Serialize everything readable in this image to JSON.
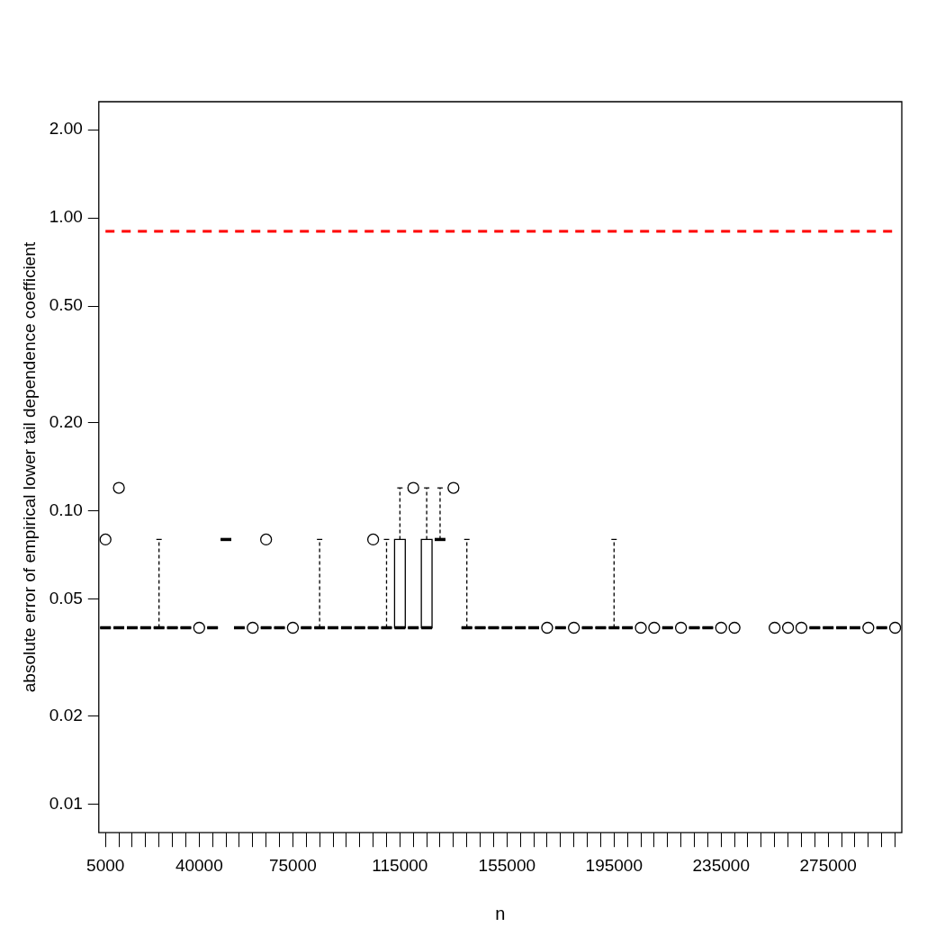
{
  "chart_data": {
    "type": "box",
    "xlabel": "n",
    "ylabel": "absolute error of empirical lower tail dependence coefficient",
    "categories": [
      "5000",
      null,
      null,
      null,
      null,
      null,
      null,
      "40000",
      null,
      null,
      null,
      null,
      null,
      null,
      "75000",
      null,
      null,
      null,
      null,
      null,
      null,
      null,
      "115000",
      null,
      null,
      null,
      null,
      null,
      null,
      null,
      "155000",
      null,
      null,
      null,
      null,
      null,
      null,
      null,
      "195000",
      null,
      null,
      null,
      null,
      null,
      null,
      null,
      "235000",
      null,
      null,
      null,
      null,
      null,
      null,
      null,
      "275000",
      null,
      null,
      null,
      null,
      null
    ],
    "log": "y",
    "grid": false,
    "color": "#000000",
    "ylim": [
      0.008,
      2.49
    ],
    "yticks": [
      0.01,
      0.02,
      0.05,
      {
        "value": 0.1,
        "label": "0.10"
      },
      {
        "value": 0.2,
        "label": "0.20"
      },
      {
        "value": 0.5,
        "label": "0.50"
      },
      {
        "value": 1,
        "label": "1.00"
      },
      {
        "value": 2,
        "label": "2.00"
      }
    ],
    "boxes": [
      {
        "low": 0.04,
        "q1": 0.04,
        "median": 0.04,
        "q3": 0.04,
        "high": 0.04,
        "outliers": [
          0.08
        ]
      },
      {
        "low": 0.04,
        "q1": 0.04,
        "median": 0.04,
        "q3": 0.04,
        "high": 0.04,
        "outliers": [
          0.12
        ]
      },
      {
        "low": 0.04,
        "q1": 0.04,
        "median": 0.04,
        "q3": 0.04,
        "high": 0.04
      },
      {
        "low": 0.04,
        "q1": 0.04,
        "median": 0.04,
        "q3": 0.04,
        "high": 0.04
      },
      {
        "low": 0.04,
        "q1": 0.04,
        "median": 0.04,
        "q3": 0.04,
        "high": 0.08
      },
      {
        "low": 0.04,
        "q1": 0.04,
        "median": 0.04,
        "q3": 0.04,
        "high": 0.04
      },
      {
        "low": 0.04,
        "q1": 0.04,
        "median": 0.04,
        "q3": 0.04,
        "high": 0.04
      },
      {
        "low": 0.04,
        "q1": 0.04,
        "median": 0.04,
        "q3": 0.04,
        "high": 0.04,
        "outliers": [
          0.04
        ]
      },
      {
        "low": 0.04,
        "q1": 0.04,
        "median": 0.04,
        "q3": 0.04,
        "high": 0.04
      },
      {
        "low": 0.08,
        "q1": 0.08,
        "median": 0.08,
        "q3": 0.08,
        "high": 0.08
      },
      {
        "low": 0.04,
        "q1": 0.04,
        "median": 0.04,
        "q3": 0.04,
        "high": 0.04
      },
      {
        "low": 0.04,
        "q1": 0.04,
        "median": 0.04,
        "q3": 0.04,
        "high": 0.04,
        "outliers": [
          0.04
        ]
      },
      {
        "low": 0.04,
        "q1": 0.04,
        "median": 0.04,
        "q3": 0.04,
        "high": 0.04,
        "outliers": [
          0.08
        ]
      },
      {
        "low": 0.04,
        "q1": 0.04,
        "median": 0.04,
        "q3": 0.04,
        "high": 0.04
      },
      {
        "low": 0.04,
        "q1": 0.04,
        "median": 0.04,
        "q3": 0.04,
        "high": 0.04,
        "outliers": [
          0.04
        ]
      },
      {
        "low": 0.04,
        "q1": 0.04,
        "median": 0.04,
        "q3": 0.04,
        "high": 0.04
      },
      {
        "low": 0.04,
        "q1": 0.04,
        "median": 0.04,
        "q3": 0.04,
        "high": 0.08
      },
      {
        "low": 0.04,
        "q1": 0.04,
        "median": 0.04,
        "q3": 0.04,
        "high": 0.04
      },
      {
        "low": 0.04,
        "q1": 0.04,
        "median": 0.04,
        "q3": 0.04,
        "high": 0.04
      },
      {
        "low": 0.04,
        "q1": 0.04,
        "median": 0.04,
        "q3": 0.04,
        "high": 0.04
      },
      {
        "low": 0.04,
        "q1": 0.04,
        "median": 0.04,
        "q3": 0.04,
        "high": 0.04,
        "outliers": [
          0.08
        ]
      },
      {
        "low": 0.04,
        "q1": 0.04,
        "median": 0.04,
        "q3": 0.04,
        "high": 0.08
      },
      {
        "low": 0.04,
        "q1": 0.04,
        "median": 0.04,
        "q3": 0.08,
        "high": 0.12
      },
      {
        "low": 0.04,
        "q1": 0.04,
        "median": 0.04,
        "q3": 0.04,
        "high": 0.04,
        "outliers": [
          0.12
        ]
      },
      {
        "low": 0.04,
        "q1": 0.04,
        "median": 0.04,
        "q3": 0.08,
        "high": 0.12
      },
      {
        "low": 0.08,
        "q1": 0.08,
        "median": 0.08,
        "q3": 0.08,
        "high": 0.12
      },
      {
        "low": 0.12,
        "q1": 0.12,
        "median": 0.12,
        "q3": 0.12,
        "high": 0.12,
        "outliers": [
          0.12
        ]
      },
      {
        "low": 0.04,
        "q1": 0.04,
        "median": 0.04,
        "q3": 0.04,
        "high": 0.08
      },
      {
        "low": 0.04,
        "q1": 0.04,
        "median": 0.04,
        "q3": 0.04,
        "high": 0.04
      },
      {
        "low": 0.04,
        "q1": 0.04,
        "median": 0.04,
        "q3": 0.04,
        "high": 0.04
      },
      {
        "low": 0.04,
        "q1": 0.04,
        "median": 0.04,
        "q3": 0.04,
        "high": 0.04
      },
      {
        "low": 0.04,
        "q1": 0.04,
        "median": 0.04,
        "q3": 0.04,
        "high": 0.04
      },
      {
        "low": 0.04,
        "q1": 0.04,
        "median": 0.04,
        "q3": 0.04,
        "high": 0.04
      },
      {
        "low": 0.04,
        "q1": 0.04,
        "median": 0.04,
        "q3": 0.04,
        "high": 0.04,
        "outliers": [
          0.04
        ]
      },
      {
        "low": 0.04,
        "q1": 0.04,
        "median": 0.04,
        "q3": 0.04,
        "high": 0.04
      },
      {
        "low": 0.04,
        "q1": 0.04,
        "median": 0.04,
        "q3": 0.04,
        "high": 0.04,
        "outliers": [
          0.04
        ]
      },
      {
        "low": 0.04,
        "q1": 0.04,
        "median": 0.04,
        "q3": 0.04,
        "high": 0.04
      },
      {
        "low": 0.04,
        "q1": 0.04,
        "median": 0.04,
        "q3": 0.04,
        "high": 0.04
      },
      {
        "low": 0.04,
        "q1": 0.04,
        "median": 0.04,
        "q3": 0.04,
        "high": 0.08
      },
      {
        "low": 0.04,
        "q1": 0.04,
        "median": 0.04,
        "q3": 0.04,
        "high": 0.04
      },
      {
        "low": 0.04,
        "q1": 0.04,
        "median": 0.04,
        "q3": 0.04,
        "high": 0.04,
        "outliers": [
          0.04
        ]
      },
      {
        "low": 0.04,
        "q1": 0.04,
        "median": 0.04,
        "q3": 0.04,
        "high": 0.04,
        "outliers": [
          0.04
        ]
      },
      {
        "low": 0.04,
        "q1": 0.04,
        "median": 0.04,
        "q3": 0.04,
        "high": 0.04
      },
      {
        "low": 0.04,
        "q1": 0.04,
        "median": 0.04,
        "q3": 0.04,
        "high": 0.04,
        "outliers": [
          0.04
        ]
      },
      {
        "low": 0.04,
        "q1": 0.04,
        "median": 0.04,
        "q3": 0.04,
        "high": 0.04
      },
      {
        "low": 0.04,
        "q1": 0.04,
        "median": 0.04,
        "q3": 0.04,
        "high": 0.04
      },
      {
        "low": 0.04,
        "q1": 0.04,
        "median": 0.04,
        "q3": 0.04,
        "high": 0.04,
        "outliers": [
          0.04
        ]
      },
      {
        "low": 0.04,
        "q1": 0.04,
        "median": 0.04,
        "q3": 0.04,
        "high": 0.04,
        "outliers": [
          0.04
        ]
      },
      null,
      null,
      {
        "low": 0.04,
        "q1": 0.04,
        "median": 0.04,
        "q3": 0.04,
        "high": 0.04,
        "outliers": [
          0.04
        ]
      },
      {
        "low": 0.04,
        "q1": 0.04,
        "median": 0.04,
        "q3": 0.04,
        "high": 0.04,
        "outliers": [
          0.04
        ]
      },
      {
        "low": 0.04,
        "q1": 0.04,
        "median": 0.04,
        "q3": 0.04,
        "high": 0.04,
        "outliers": [
          0.04
        ]
      },
      {
        "low": 0.04,
        "q1": 0.04,
        "median": 0.04,
        "q3": 0.04,
        "high": 0.04
      },
      {
        "low": 0.04,
        "q1": 0.04,
        "median": 0.04,
        "q3": 0.04,
        "high": 0.04
      },
      {
        "low": 0.04,
        "q1": 0.04,
        "median": 0.04,
        "q3": 0.04,
        "high": 0.04
      },
      {
        "low": 0.04,
        "q1": 0.04,
        "median": 0.04,
        "q3": 0.04,
        "high": 0.04
      },
      {
        "low": 0.04,
        "q1": 0.04,
        "median": 0.04,
        "q3": 0.04,
        "high": 0.04,
        "outliers": [
          0.04
        ]
      },
      {
        "low": 0.04,
        "q1": 0.04,
        "median": 0.04,
        "q3": 0.04,
        "high": 0.04
      },
      {
        "low": 0.04,
        "q1": 0.04,
        "median": 0.04,
        "q3": 0.04,
        "high": 0.04,
        "outliers": [
          0.04
        ]
      }
    ],
    "series": [
      {
        "type": "line",
        "color": "#ff0000",
        "line_style": "dashed",
        "marker": "none",
        "values": [
          0.9,
          0.9,
          0.9,
          0.9,
          0.9,
          0.9,
          0.9,
          0.9,
          0.9,
          0.9,
          0.9,
          0.9,
          0.9,
          0.9,
          0.9,
          0.9,
          0.9,
          0.9,
          0.9,
          0.9,
          0.9,
          0.9,
          0.9,
          0.9,
          0.9,
          0.9,
          0.9,
          0.9,
          0.9,
          0.9,
          0.9,
          0.9,
          0.9,
          0.9,
          0.9,
          0.9,
          0.9,
          0.9,
          0.9,
          0.9,
          0.9,
          0.9,
          0.9,
          0.9,
          0.9,
          0.9,
          0.9,
          0.9,
          0.9,
          0.9,
          0.9,
          0.9,
          0.9,
          0.9,
          0.9,
          0.9,
          0.9,
          0.9,
          0.9,
          0.9
        ]
      }
    ]
  }
}
